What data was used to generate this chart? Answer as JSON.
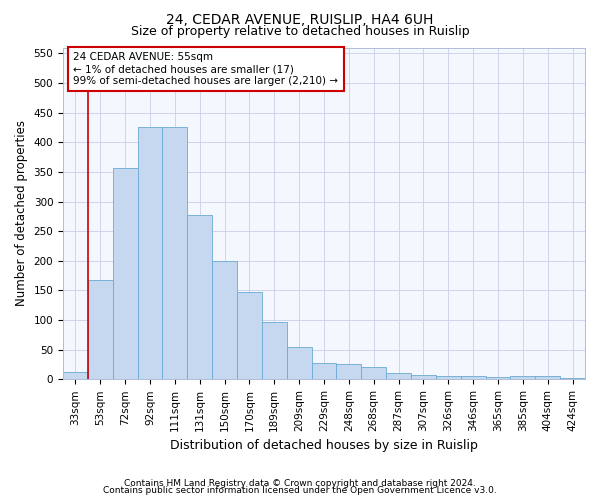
{
  "title_line1": "24, CEDAR AVENUE, RUISLIP, HA4 6UH",
  "title_line2": "Size of property relative to detached houses in Ruislip",
  "xlabel": "Distribution of detached houses by size in Ruislip",
  "ylabel": "Number of detached properties",
  "categories": [
    "33sqm",
    "53sqm",
    "72sqm",
    "92sqm",
    "111sqm",
    "131sqm",
    "150sqm",
    "170sqm",
    "189sqm",
    "209sqm",
    "229sqm",
    "248sqm",
    "268sqm",
    "287sqm",
    "307sqm",
    "326sqm",
    "346sqm",
    "365sqm",
    "385sqm",
    "404sqm",
    "424sqm"
  ],
  "values": [
    13,
    168,
    357,
    425,
    425,
    277,
    200,
    148,
    96,
    55,
    27,
    26,
    20,
    11,
    8,
    5,
    5,
    4,
    5,
    5,
    3
  ],
  "bar_color": "#c5d8f0",
  "bar_edge_color": "#6aaad4",
  "annotation_text_line1": "24 CEDAR AVENUE: 55sqm",
  "annotation_text_line2": "← 1% of detached houses are smaller (17)",
  "annotation_text_line3": "99% of semi-detached houses are larger (2,210) →",
  "annotation_box_color": "#ffffff",
  "annotation_box_edge": "#cc0000",
  "vline_color": "#cc0000",
  "vline_x": 0.5,
  "ylim": [
    0,
    560
  ],
  "yticks": [
    0,
    50,
    100,
    150,
    200,
    250,
    300,
    350,
    400,
    450,
    500,
    550
  ],
  "footnote_line1": "Contains HM Land Registry data © Crown copyright and database right 2024.",
  "footnote_line2": "Contains public sector information licensed under the Open Government Licence v3.0.",
  "bg_color": "#ffffff",
  "plot_bg_color": "#f5f7ff",
  "title_fontsize": 10,
  "subtitle_fontsize": 9,
  "axis_label_fontsize": 8.5,
  "tick_fontsize": 7.5,
  "footnote_fontsize": 6.5
}
